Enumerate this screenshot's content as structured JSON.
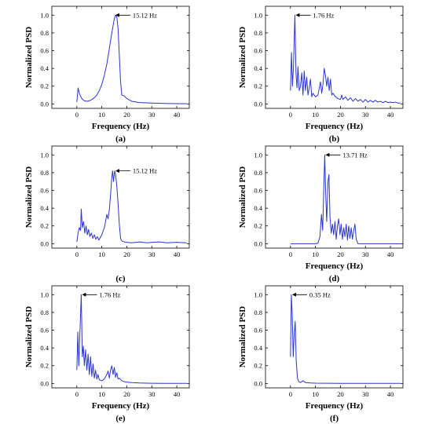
{
  "chart_data": [
    {
      "type": "line",
      "panel_label": "(a)",
      "xlabel": "Frequency (Hz)",
      "ylabel": "Normalized PSD",
      "xlim": [
        -10,
        45
      ],
      "ylim": [
        -0.05,
        1.1
      ],
      "xticks": [
        0,
        10,
        20,
        30,
        40
      ],
      "yticks": [
        0.0,
        0.2,
        0.4,
        0.6,
        0.8,
        1.0
      ],
      "yticklabels": [
        "0.0",
        "0.2",
        "0.4",
        "0.6",
        "0.8",
        "1.0"
      ],
      "grid": false,
      "annotation": {
        "text": "15.12 Hz",
        "x": 15.12,
        "y": 1.0
      },
      "series": [
        {
          "color": "#2b35c8",
          "x": [
            0,
            0.5,
            1,
            2,
            3,
            4,
            5,
            6,
            7,
            8,
            9,
            10,
            11,
            12,
            13,
            14,
            15,
            15.5,
            16,
            16.5,
            17,
            17.5,
            18,
            19,
            20,
            22,
            25,
            30,
            35,
            40,
            44
          ],
          "y": [
            0.02,
            0.18,
            0.12,
            0.06,
            0.035,
            0.03,
            0.035,
            0.05,
            0.07,
            0.1,
            0.15,
            0.22,
            0.32,
            0.45,
            0.62,
            0.8,
            0.96,
            1.0,
            0.98,
            0.85,
            0.55,
            0.25,
            0.1,
            0.09,
            0.06,
            0.03,
            0.015,
            0.01,
            0.005,
            0.003,
            0.002
          ]
        }
      ]
    },
    {
      "type": "line",
      "panel_label": "(b)",
      "xlabel": "Frequency (Hz)",
      "ylabel": "Normalized PSD",
      "xlim": [
        -10,
        45
      ],
      "ylim": [
        -0.05,
        1.1
      ],
      "xticks": [
        0,
        10,
        20,
        30,
        40
      ],
      "yticks": [
        0.0,
        0.2,
        0.4,
        0.6,
        0.8,
        1.0
      ],
      "yticklabels": [
        "0.0",
        "0.2",
        "0.4",
        "0.6",
        "0.8",
        "1.0"
      ],
      "grid": false,
      "annotation": {
        "text": "1.76 Hz",
        "x": 1.76,
        "y": 1.0
      },
      "series": [
        {
          "color": "#2b35c8",
          "x": [
            0,
            0.4,
            0.8,
            1.2,
            1.76,
            2.2,
            2.6,
            3.0,
            3.5,
            4,
            4.5,
            5,
            5.5,
            6,
            6.5,
            7,
            7.5,
            8,
            8.5,
            9,
            10,
            11,
            12,
            12.5,
            13,
            13.5,
            14,
            14.5,
            15,
            15.5,
            16,
            16.5,
            17,
            18,
            19,
            20,
            20.5,
            21,
            22,
            23,
            24,
            25,
            26,
            27,
            28,
            29,
            30,
            31,
            32,
            33,
            34,
            35,
            36,
            37,
            38,
            39,
            40,
            41,
            42,
            43,
            44
          ],
          "y": [
            0.15,
            0.58,
            0.2,
            0.42,
            1.0,
            0.35,
            0.18,
            0.42,
            0.15,
            0.2,
            0.35,
            0.1,
            0.37,
            0.15,
            0.3,
            0.1,
            0.18,
            0.28,
            0.08,
            0.12,
            0.08,
            0.1,
            0.25,
            0.12,
            0.22,
            0.4,
            0.32,
            0.2,
            0.3,
            0.15,
            0.28,
            0.1,
            0.12,
            0.08,
            0.06,
            0.05,
            0.1,
            0.05,
            0.08,
            0.04,
            0.07,
            0.03,
            0.06,
            0.03,
            0.05,
            0.02,
            0.05,
            0.02,
            0.04,
            0.02,
            0.04,
            0.02,
            0.03,
            0.015,
            0.03,
            0.015,
            0.02,
            0.015,
            0.02,
            0.01,
            0.01
          ]
        }
      ]
    },
    {
      "type": "line",
      "panel_label": "(c)",
      "xlabel": "",
      "ylabel": "Normalized PSD",
      "xlim": [
        -10,
        45
      ],
      "ylim": [
        -0.05,
        1.1
      ],
      "xticks": [
        0,
        10,
        20,
        30,
        40
      ],
      "yticks": [
        0.0,
        0.2,
        0.4,
        0.6,
        0.8,
        1.0
      ],
      "yticklabels": [
        "0.0",
        "0.2",
        "0.4",
        "0.6",
        "0.8",
        "1.0"
      ],
      "grid": false,
      "annotation": {
        "text": "15.12 Hz",
        "x": 15.12,
        "y": 0.82
      },
      "series": [
        {
          "color": "#2b35c8",
          "x": [
            0,
            0.5,
            1,
            1.5,
            1.76,
            2.2,
            2.7,
            3.2,
            3.7,
            4.2,
            4.7,
            5.2,
            5.8,
            6.4,
            7,
            7.6,
            8.2,
            8.8,
            9.4,
            10,
            10.5,
            11,
            11.5,
            12,
            12.5,
            13,
            13.5,
            14,
            14.3,
            14.7,
            15.12,
            15.5,
            16,
            16.5,
            17,
            17.5,
            18,
            19,
            20,
            22,
            25,
            28,
            30,
            33,
            36,
            40,
            44
          ],
          "y": [
            0.02,
            0.12,
            0.18,
            0.15,
            0.39,
            0.18,
            0.25,
            0.12,
            0.2,
            0.1,
            0.16,
            0.08,
            0.12,
            0.06,
            0.1,
            0.05,
            0.08,
            0.04,
            0.07,
            0.1,
            0.14,
            0.18,
            0.25,
            0.33,
            0.28,
            0.38,
            0.55,
            0.75,
            0.82,
            0.7,
            0.82,
            0.78,
            0.65,
            0.45,
            0.22,
            0.06,
            0.03,
            0.02,
            0.015,
            0.01,
            0.02,
            0.01,
            0.015,
            0.02,
            0.01,
            0.015,
            0.01
          ]
        }
      ]
    },
    {
      "type": "line",
      "panel_label": "(d)",
      "xlabel": "Frequency (Hz)",
      "ylabel": "Normalized PSD",
      "xlim": [
        -10,
        45
      ],
      "ylim": [
        -0.05,
        1.1
      ],
      "xticks": [
        0,
        10,
        20,
        30,
        40
      ],
      "yticks": [
        0.0,
        0.2,
        0.4,
        0.6,
        0.8,
        1.0
      ],
      "yticklabels": [
        "0.0",
        "0.2",
        "0.4",
        "0.6",
        "0.8",
        "1.0"
      ],
      "grid": false,
      "annotation": {
        "text": "13.71 Hz",
        "x": 13.71,
        "y": 1.0
      },
      "series": [
        {
          "color": "#2b35c8",
          "x": [
            0,
            5,
            10,
            11,
            11.8,
            12.4,
            12.9,
            13.3,
            13.71,
            14.1,
            14.5,
            15,
            15.4,
            15.8,
            16.3,
            16.8,
            17.3,
            17.8,
            18.3,
            18.8,
            19.3,
            19.8,
            20.3,
            20.8,
            21.3,
            21.8,
            22.3,
            22.8,
            23.3,
            23.8,
            24.3,
            24.8,
            25.3,
            25.8,
            26.3,
            27,
            30,
            35,
            40,
            44
          ],
          "y": [
            0.0,
            0.0,
            0.0,
            0.005,
            0.08,
            0.33,
            0.15,
            0.6,
            1.0,
            0.55,
            0.25,
            0.7,
            0.78,
            0.3,
            0.12,
            0.22,
            0.1,
            0.25,
            0.05,
            0.2,
            0.28,
            0.1,
            0.22,
            0.05,
            0.18,
            0.08,
            0.22,
            0.04,
            0.2,
            0.06,
            0.18,
            0.05,
            0.15,
            0.22,
            0.05,
            0.0,
            0.0,
            0.0,
            0.0,
            0.0
          ]
        }
      ]
    },
    {
      "type": "line",
      "panel_label": "(e)",
      "xlabel": "Frequency (Hz)",
      "ylabel": "Normalized PSD",
      "xlim": [
        -10,
        45
      ],
      "ylim": [
        -0.05,
        1.1
      ],
      "xticks": [
        0,
        10,
        20,
        30,
        40
      ],
      "yticks": [
        0.0,
        0.2,
        0.4,
        0.6,
        0.8,
        1.0
      ],
      "yticklabels": [
        "0.0",
        "0.2",
        "0.4",
        "0.6",
        "0.8",
        "1.0"
      ],
      "grid": false,
      "annotation": {
        "text": "1.76 Hz",
        "x": 1.76,
        "y": 1.0
      },
      "series": [
        {
          "color": "#2b35c8",
          "x": [
            0,
            0.4,
            0.8,
            1.2,
            1.76,
            2.2,
            2.6,
            3.0,
            3.5,
            4,
            4.5,
            5,
            5.5,
            6,
            6.5,
            7,
            7.5,
            8,
            8.5,
            9,
            10,
            11,
            12,
            12.5,
            13,
            13.5,
            14,
            14.5,
            15,
            15.5,
            16,
            16.5,
            17,
            18,
            19,
            20,
            22,
            25,
            28,
            30,
            35,
            40,
            44
          ],
          "y": [
            0.15,
            0.58,
            0.2,
            0.55,
            1.0,
            0.3,
            0.42,
            0.2,
            0.38,
            0.15,
            0.33,
            0.1,
            0.3,
            0.08,
            0.22,
            0.06,
            0.15,
            0.05,
            0.1,
            0.04,
            0.03,
            0.05,
            0.1,
            0.14,
            0.06,
            0.15,
            0.2,
            0.1,
            0.18,
            0.07,
            0.12,
            0.05,
            0.06,
            0.03,
            0.02,
            0.015,
            0.01,
            0.005,
            0.003,
            0.002,
            0.001,
            0.001,
            0.001
          ]
        }
      ]
    },
    {
      "type": "line",
      "panel_label": "(f)",
      "xlabel": "Frequency (Hz)",
      "ylabel": "Normalized PSD",
      "xlim": [
        -10,
        45
      ],
      "ylim": [
        -0.05,
        1.1
      ],
      "xticks": [
        0,
        10,
        20,
        30,
        40
      ],
      "yticks": [
        0.0,
        0.2,
        0.4,
        0.6,
        0.8,
        1.0
      ],
      "yticklabels": [
        "0.0",
        "0.2",
        "0.4",
        "0.6",
        "0.8",
        "1.0"
      ],
      "grid": false,
      "annotation": {
        "text": "0.35 Hz",
        "x": 0.35,
        "y": 1.0
      },
      "series": [
        {
          "color": "#2b35c8",
          "x": [
            0,
            0.35,
            0.7,
            1.1,
            1.5,
            1.9,
            2.3,
            2.8,
            3.3,
            4,
            5,
            6,
            8,
            10,
            15,
            20,
            30,
            40,
            44
          ],
          "y": [
            0.3,
            1.0,
            0.78,
            0.3,
            0.55,
            0.7,
            0.25,
            0.06,
            0.02,
            0.01,
            0.03,
            0.01,
            0.005,
            0.003,
            0.002,
            0.001,
            0.001,
            0.001,
            0.001
          ]
        }
      ]
    }
  ]
}
